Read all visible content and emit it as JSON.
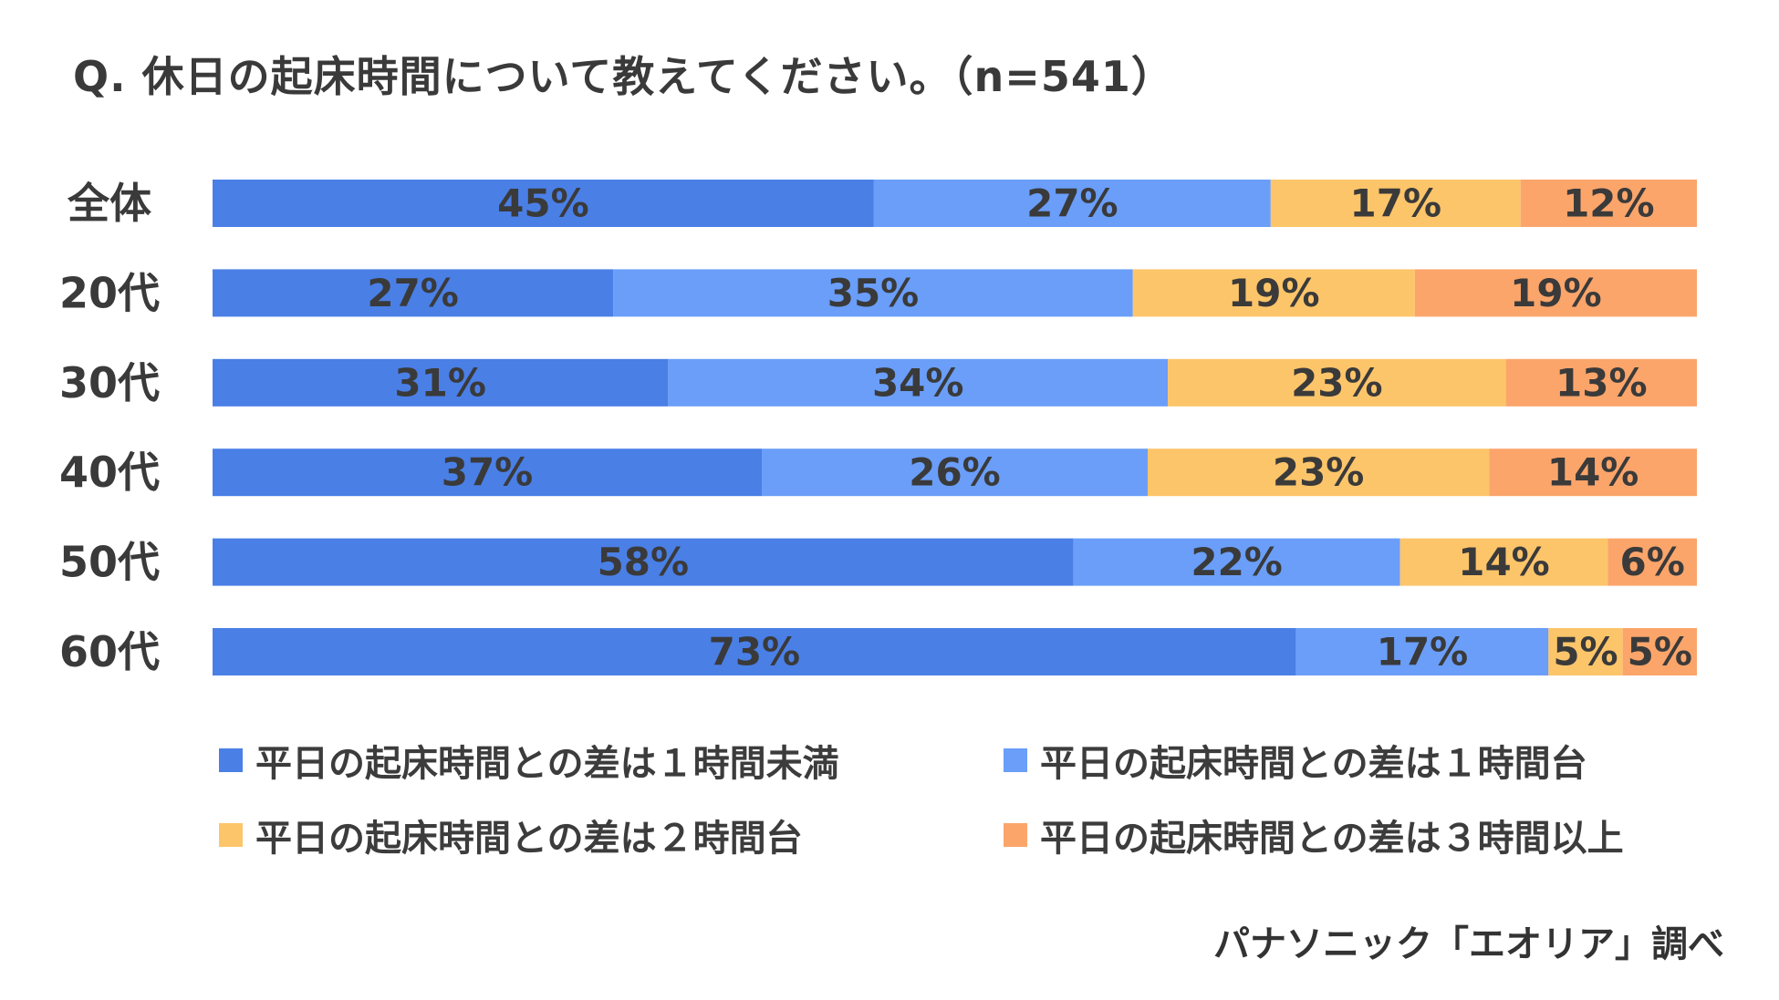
{
  "title": "Q. 休日の起床時間について教えてください。（n=541）",
  "source_note": "パナソニック「エオリア」調べ",
  "chart_data": {
    "type": "bar",
    "orientation": "horizontal",
    "stacked": true,
    "categories": [
      "全体",
      "20代",
      "30代",
      "40代",
      "50代",
      "60代"
    ],
    "series": [
      {
        "name": "平日の起床時間との差は１時間未満",
        "color": "#4a7fe6",
        "values": [
          45,
          27,
          31,
          37,
          58,
          73
        ]
      },
      {
        "name": "平日の起床時間との差は１時間台",
        "color": "#6a9ef8",
        "values": [
          27,
          35,
          34,
          26,
          22,
          17
        ]
      },
      {
        "name": "平日の起床時間との差は２時間台",
        "color": "#fdc56a",
        "values": [
          17,
          19,
          23,
          23,
          14,
          5
        ]
      },
      {
        "name": "平日の起床時間との差は３時間以上",
        "color": "#fba56b",
        "values": [
          12,
          19,
          13,
          14,
          6,
          5
        ]
      }
    ],
    "value_suffix": "%",
    "data_labels": true,
    "grid": false,
    "legend_position": "bottom"
  }
}
